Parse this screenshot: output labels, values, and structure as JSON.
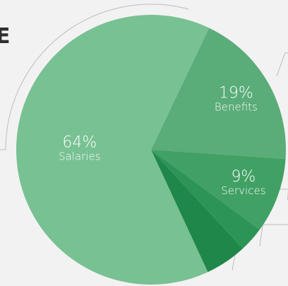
{
  "heading": {
    "visible_text": "E"
  },
  "chart_data": {
    "type": "pie",
    "title": "",
    "slices": [
      {
        "label": "Benefits",
        "value": 19,
        "display": "19%",
        "color": "#5aac78"
      },
      {
        "label": "Services",
        "value": 9,
        "display": "9%",
        "color": "#41a064"
      },
      {
        "label": "",
        "value": 3,
        "display": "",
        "color": "#2c9556"
      },
      {
        "label": "",
        "value": 5,
        "display": "",
        "color": "#1f8749"
      },
      {
        "label": "Salaries",
        "value": 64,
        "display": "64%",
        "color": "#78c193"
      }
    ],
    "start_angle_deg": -64.5,
    "direction": "clockwise",
    "leader_lines": true
  },
  "colors": {
    "background": "#f2f2f2",
    "ring": "#bdbdbd",
    "label_text": "#ffffff",
    "heading_text": "#2f2f2f"
  }
}
